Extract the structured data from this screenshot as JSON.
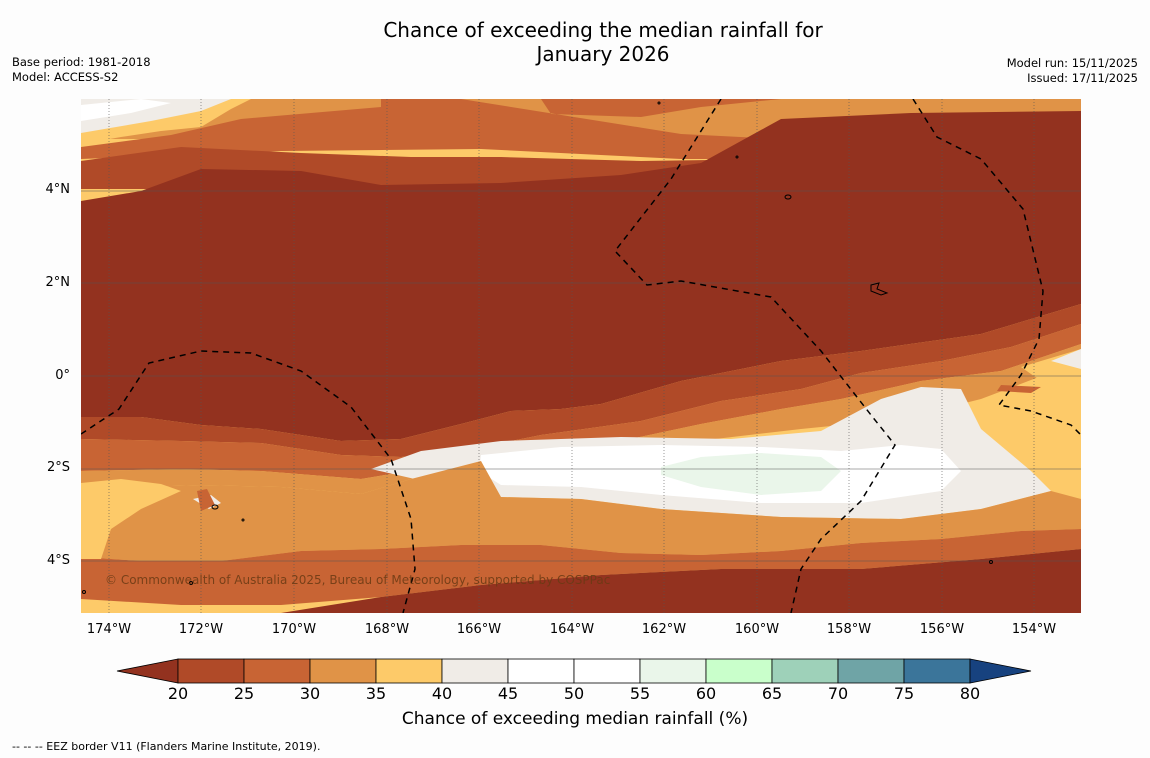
{
  "header": {
    "title_line1": "Chance of exceeding the median rainfall for",
    "title_line2": "January 2026",
    "base_period": "Base period: 1981-2018",
    "model": "Model: ACCESS-S2",
    "model_run": "Model run: 15/11/2025",
    "issued": "Issued: 17/11/2025"
  },
  "map": {
    "lat_labels": [
      "4°N",
      "2°N",
      "0°",
      "2°S",
      "4°S"
    ],
    "lon_labels": [
      "174°W",
      "172°W",
      "170°W",
      "168°W",
      "166°W",
      "164°W",
      "162°W",
      "160°W",
      "158°W",
      "156°W",
      "154°W"
    ],
    "copyright": "© Commonwealth of Australia 2025, Bureau of Meteorology, supported by COSPPac"
  },
  "colorbar": {
    "label": "Chance of exceeding median rainfall (%)",
    "ticks": [
      "20",
      "25",
      "30",
      "35",
      "40",
      "45",
      "50",
      "55",
      "60",
      "65",
      "70",
      "75",
      "80"
    ],
    "colors": [
      "#93321f",
      "#b04a28",
      "#c86434",
      "#e09347",
      "#fdca69",
      "#f0ece7",
      "#ffffff",
      "#ffffff",
      "#eaf6ea",
      "#c9ffcb",
      "#9ed1b9",
      "#6fa4a6",
      "#3b759a",
      "#17427f"
    ]
  },
  "footnote": "--  --  -- EEZ border V11 (Flanders Marine Institute, 2019)."
}
